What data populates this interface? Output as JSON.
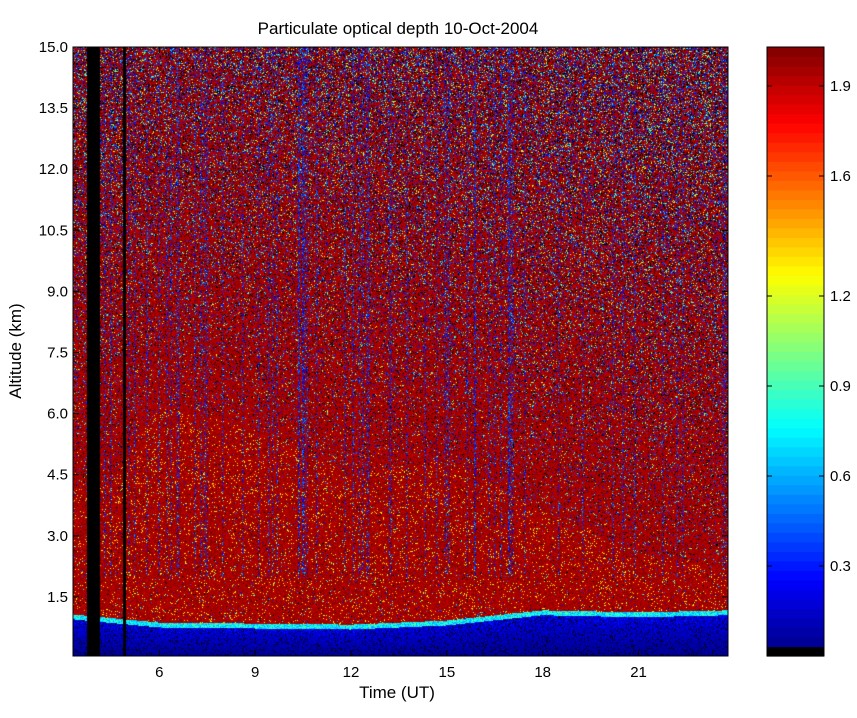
{
  "chart_data": {
    "type": "heatmap",
    "title": "Particulate optical depth  10-Oct-2004",
    "xlabel": "Time (UT)",
    "ylabel": "Altitude (km)",
    "xlim": [
      3.3,
      23.8
    ],
    "ylim": [
      0.05,
      15.0
    ],
    "x_ticks": [
      6,
      9,
      12,
      15,
      18,
      21
    ],
    "x_tick_labels": [
      "6",
      "9",
      "12",
      "15",
      "18",
      "21"
    ],
    "y_ticks": [
      1.5,
      3.0,
      4.5,
      6.0,
      7.5,
      9.0,
      10.5,
      12.0,
      13.5,
      15.0
    ],
    "y_tick_labels": [
      "1.5",
      "3.0",
      "4.5",
      "6.0",
      "7.5",
      "9.0",
      "10.5",
      "12.0",
      "13.5",
      "15.0"
    ],
    "colorbar": {
      "colormap": "jet",
      "clim": [
        0.0,
        2.03
      ],
      "ticks": [
        0.3,
        0.6,
        0.9,
        1.2,
        1.6,
        1.9
      ],
      "tick_labels": [
        "0.3",
        "0.6",
        "0.9",
        "1.2",
        "1.6",
        "1.9"
      ]
    },
    "data_gaps": [
      [
        3.75,
        4.15
      ],
      [
        4.85,
        4.95
      ]
    ],
    "surface_layer_top_km": [
      [
        3.3,
        0.95
      ],
      [
        6,
        0.75
      ],
      [
        12,
        0.7
      ],
      [
        15,
        0.8
      ],
      [
        18,
        1.05
      ],
      [
        21,
        1.0
      ],
      [
        23.8,
        1.05
      ]
    ],
    "aerosol_layer_top_km": [
      [
        4.5,
        4.3
      ],
      [
        6,
        6.2
      ],
      [
        8.5,
        5.8
      ],
      [
        12,
        4.5
      ],
      [
        15,
        4.9
      ],
      [
        18,
        3.6
      ],
      [
        21,
        2.6
      ],
      [
        23.8,
        2.2
      ]
    ],
    "grid": false,
    "legend": "colorbar-right"
  }
}
